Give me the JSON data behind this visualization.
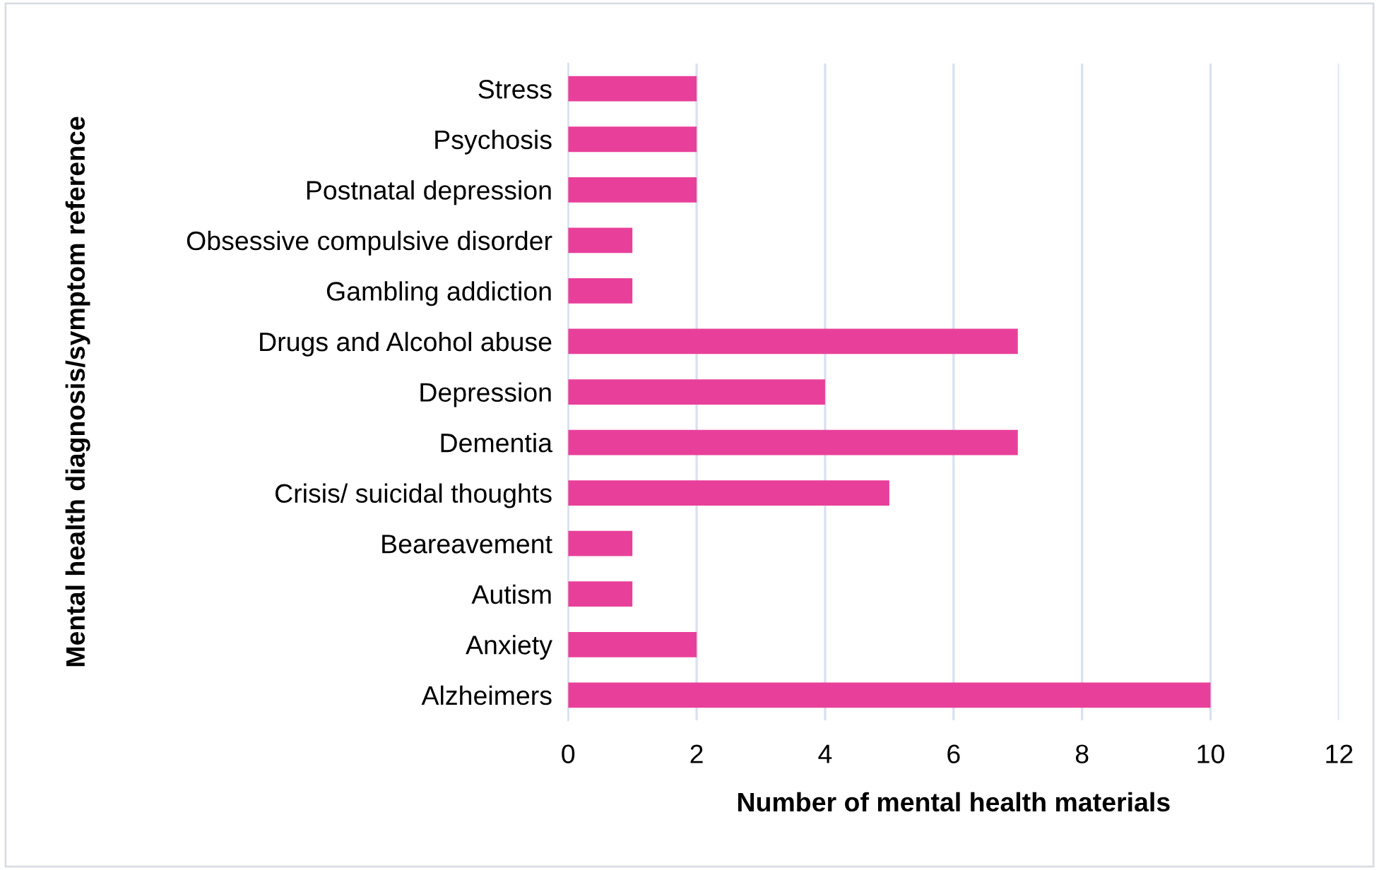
{
  "chart_data": {
    "type": "bar",
    "orientation": "horizontal",
    "xlabel": "Number of mental health materials",
    "ylabel": "Mental health diagnosis/symptom reference",
    "categories": [
      "Stress",
      "Psychosis",
      "Postnatal depression",
      "Obsessive compulsive disorder",
      "Gambling addiction",
      "Drugs and Alcohol abuse",
      "Depression",
      "Dementia",
      "Crisis/ suicidal thoughts",
      "Beareavement",
      "Autism",
      "Anxiety",
      "Alzheimers"
    ],
    "values": [
      2,
      2,
      2,
      1,
      1,
      7,
      4,
      7,
      5,
      1,
      1,
      2,
      10
    ],
    "color": "#e8409a",
    "xlim": [
      0,
      12
    ],
    "xticks": [
      0,
      2,
      4,
      6,
      8,
      10,
      12
    ],
    "grid": "x"
  }
}
